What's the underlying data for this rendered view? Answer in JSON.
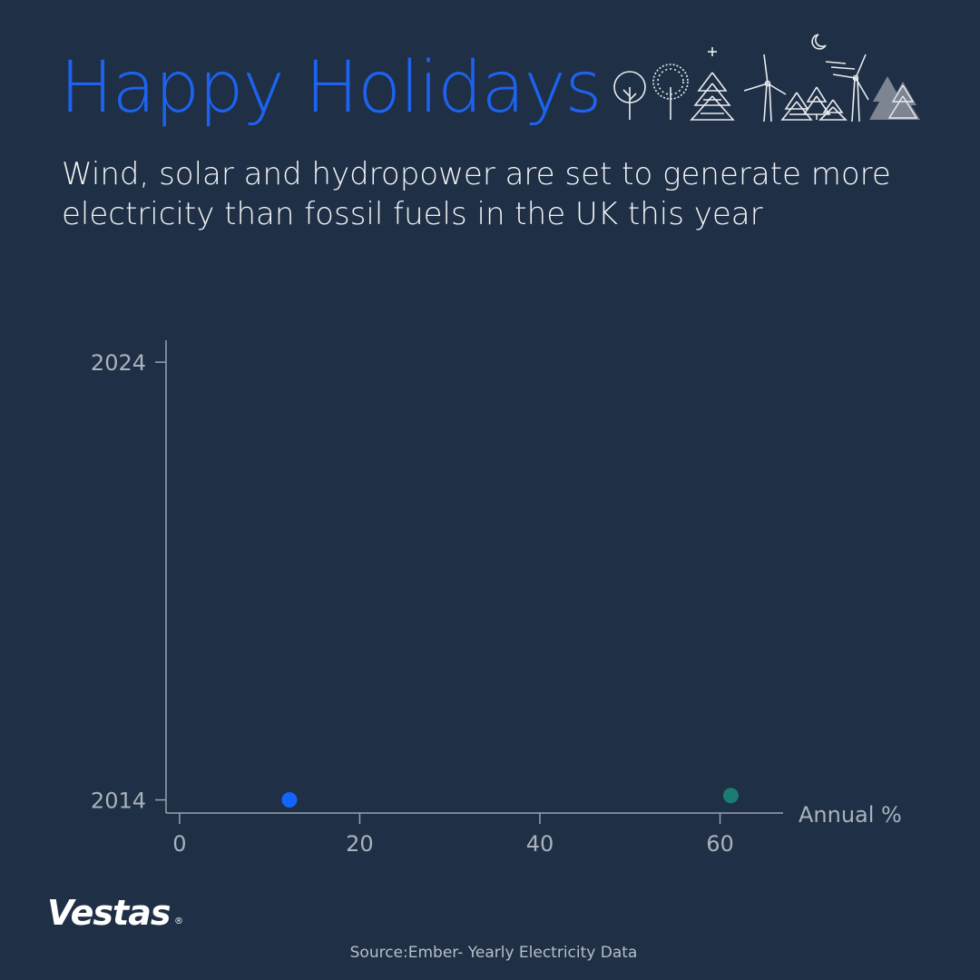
{
  "header": {
    "title": "Happy Holidays",
    "subtitle": "Wind, solar and hydropower are set to generate more electricity than fossil fuels in the UK this year"
  },
  "chart_data": {
    "type": "scatter",
    "title": "",
    "xlabel": "Annual %",
    "ylabel": "",
    "xlim": [
      -1.5,
      67
    ],
    "ylim": [
      2013.7,
      2024.5
    ],
    "x_ticks": [
      0,
      20,
      40,
      60
    ],
    "y_ticks": [
      2014,
      2024
    ],
    "grid": false,
    "points": [
      {
        "x": 12.2,
        "y": 2014,
        "color": "#1464ff"
      },
      {
        "x": 61.2,
        "y": 2014.1,
        "color": "#1a7d74"
      }
    ]
  },
  "colors": {
    "background": "#1f2f45",
    "title": "#1d63f0",
    "axis": "#9aa3ae"
  },
  "footer": {
    "brand": "Vestas",
    "brand_mark": "®",
    "source": "Source:Ember- Yearly Electricity Data"
  }
}
